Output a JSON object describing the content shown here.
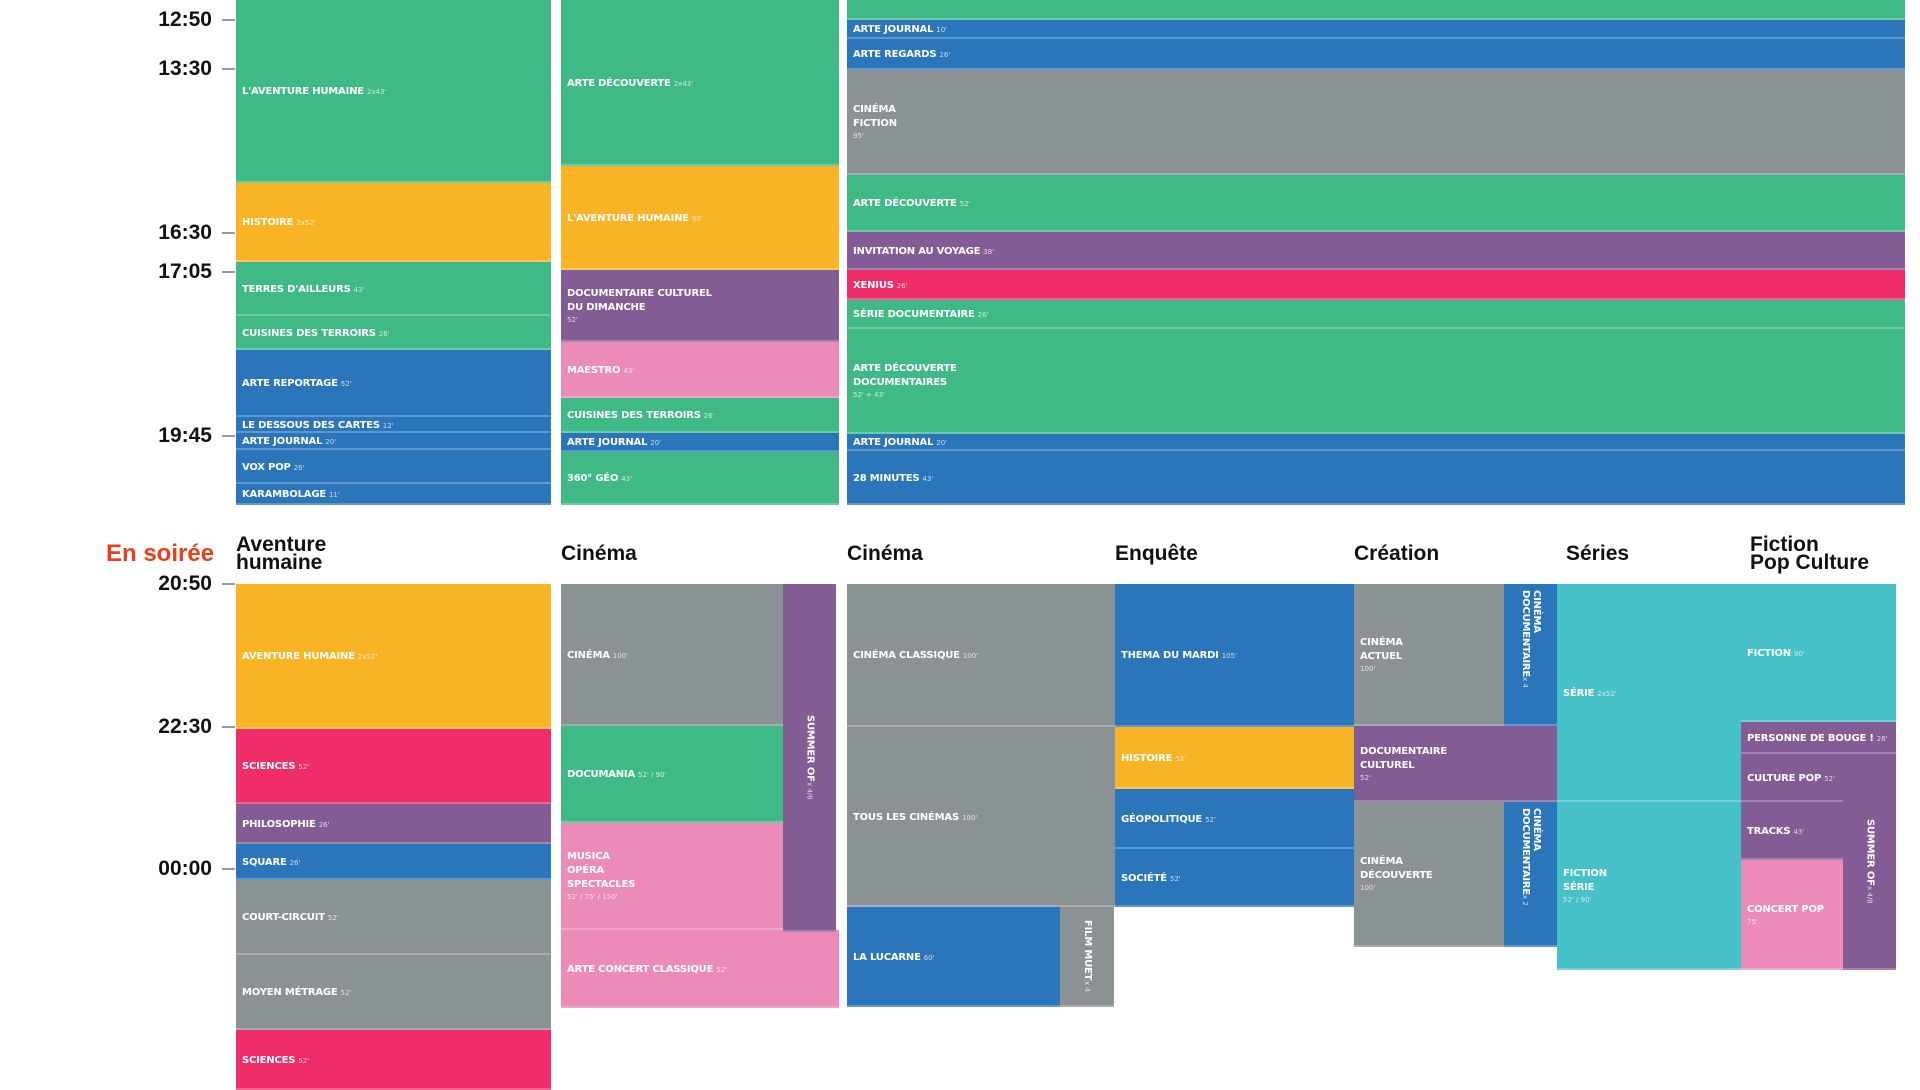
{
  "colors": {
    "green": "#3fba87",
    "orange": "#f8b424",
    "blue": "#2b75bb",
    "gray": "#8a9294",
    "purple": "#835b95",
    "red": "#ef2d68",
    "pink": "#ec8bb8",
    "teal": "#46c1c7",
    "accent": "#e8401c"
  },
  "day": {
    "times": [
      "12:50",
      "13:30",
      "16:30",
      "17:05",
      "19:45"
    ],
    "programs": [
      {
        "title": "L'AVENTURE HUMAINE",
        "dur": "2x43'",
        "color": "green"
      },
      {
        "title": "HISTOIRE",
        "dur": "2x52'",
        "color": "orange"
      },
      {
        "title": "TERRES D'AILLEURS",
        "dur": "43'",
        "color": "green"
      },
      {
        "title": "CUISINES DES TERROIRS",
        "dur": "26'",
        "color": "green"
      },
      {
        "title": "ARTE REPORTAGE",
        "dur": "52'",
        "color": "blue"
      },
      {
        "title": "LE DESSOUS DES CARTES",
        "dur": "12'",
        "color": "blue"
      },
      {
        "title": "ARTE JOURNAL",
        "dur": "20'",
        "color": "blue"
      },
      {
        "title": "VOX POP",
        "dur": "26'",
        "color": "blue"
      },
      {
        "title": "KARAMBOLAGE",
        "dur": "11'",
        "color": "blue"
      },
      {
        "title": "ARTE DÉCOUVERTE",
        "dur": "2x43'",
        "color": "green"
      },
      {
        "title": "L'AVENTURE HUMAINE",
        "dur": "90'",
        "color": "orange"
      },
      {
        "title": "DOCUMENTAIRE CULTUREL\nDU DIMANCHE",
        "dur": "52'",
        "color": "purple"
      },
      {
        "title": "MAESTRO",
        "dur": "43'",
        "color": "pink"
      },
      {
        "title": "CUISINES DES TERROIRS",
        "dur": "26'",
        "color": "green"
      },
      {
        "title": "ARTE JOURNAL",
        "dur": "20'",
        "color": "blue"
      },
      {
        "title": "360° GÉO",
        "dur": "43'",
        "color": "green"
      },
      {
        "title": "",
        "dur": "",
        "color": "green"
      },
      {
        "title": "ARTE JOURNAL",
        "dur": "10'",
        "color": "blue"
      },
      {
        "title": "ARTE REGARDS",
        "dur": "26'",
        "color": "blue"
      },
      {
        "title": "CINÉMA\nFICTION",
        "dur": "95'",
        "color": "gray"
      },
      {
        "title": "ARTE DÉCOUVERTE",
        "dur": "52'",
        "color": "green"
      },
      {
        "title": "INVITATION AU VOYAGE",
        "dur": "38'",
        "color": "purple"
      },
      {
        "title": "XENIUS",
        "dur": "26'",
        "color": "red"
      },
      {
        "title": "SÉRIE DOCUMENTAIRE",
        "dur": "26'",
        "color": "green"
      },
      {
        "title": "ARTE DÉCOUVERTE\nDOCUMENTAIRES",
        "dur": "52' + 43'",
        "color": "green"
      },
      {
        "title": "ARTE JOURNAL",
        "dur": "20'",
        "color": "blue"
      },
      {
        "title": "28 MINUTES",
        "dur": "43'",
        "color": "blue"
      }
    ]
  },
  "evening": {
    "label": "En soirée",
    "times": [
      "20:50",
      "22:30",
      "00:00"
    ],
    "headers": [
      "Aventure\nhumaine",
      "Cinéma",
      "Cinéma",
      "Enquête",
      "Création",
      "Séries",
      "Fiction\nPop Culture"
    ],
    "programs": [
      {
        "title": "AVENTURE HUMAINE",
        "dur": "2x52'",
        "color": "orange"
      },
      {
        "title": "SCIENCES",
        "dur": "52'",
        "color": "red"
      },
      {
        "title": "PHILOSOPHIE",
        "dur": "26'",
        "color": "purple"
      },
      {
        "title": "SQUARE",
        "dur": "26'",
        "color": "blue"
      },
      {
        "title": "COURT-CIRCUIT",
        "dur": "52'",
        "color": "gray"
      },
      {
        "title": "MOYEN MÉTRAGE",
        "dur": "52'",
        "color": "gray"
      },
      {
        "title": "SCIENCES",
        "dur": "52'",
        "color": "red"
      },
      {
        "title": "CINÉMA",
        "dur": "100'",
        "color": "gray"
      },
      {
        "title": "DOCUMANIA",
        "dur": "52' / 90'",
        "color": "green"
      },
      {
        "title": "MUSICA\nOPÉRA\nSPECTACLES",
        "dur": "52' / 75' / 150'",
        "color": "pink"
      },
      {
        "title": "ARTE CONCERT CLASSIQUE",
        "dur": "52'",
        "color": "pink"
      },
      {
        "title": "SUMMER OF",
        "dur": "x 4/8",
        "color": "purple"
      },
      {
        "title": "CINÉMA CLASSIQUE",
        "dur": "100'",
        "color": "gray"
      },
      {
        "title": "TOUS LES CINÉMAS",
        "dur": "100'",
        "color": "gray"
      },
      {
        "title": "LA LUCARNE",
        "dur": "60'",
        "color": "blue"
      },
      {
        "title": "FILM MUET",
        "dur": "x 4",
        "color": "gray"
      },
      {
        "title": "THEMA DU MARDI",
        "dur": "105'",
        "color": "blue"
      },
      {
        "title": "HISTOIRE",
        "dur": "52'",
        "color": "orange"
      },
      {
        "title": "GÉOPOLITIQUE",
        "dur": "52'",
        "color": "blue"
      },
      {
        "title": "SOCIÉTÉ",
        "dur": "52'",
        "color": "blue"
      },
      {
        "title": "CINÉMA\nACTUEL",
        "dur": "100'",
        "color": "gray"
      },
      {
        "title": "CINÉMA DOCUMENTAIRE",
        "dur": "x 4",
        "color": "blue"
      },
      {
        "title": "DOCUMENTAIRE\nCULTUREL",
        "dur": "52'",
        "color": "purple"
      },
      {
        "title": "CINÉMA\nDÉCOUVERTE",
        "dur": "100'",
        "color": "gray"
      },
      {
        "title": "CINÉMA DOCUMENTAIRE",
        "dur": "x 2",
        "color": "blue"
      },
      {
        "title": "SÉRIE",
        "dur": "2x52'",
        "color": "teal"
      },
      {
        "title": "FICTION\nSÉRIE",
        "dur": "52' / 90'",
        "color": "teal"
      },
      {
        "title": "FICTION",
        "dur": "90'",
        "color": "teal"
      },
      {
        "title": "PERSONNE DE BOUGE !",
        "dur": "26'",
        "color": "purple"
      },
      {
        "title": "CULTURE POP",
        "dur": "52'",
        "color": "purple"
      },
      {
        "title": "TRACKS",
        "dur": "43'",
        "color": "purple"
      },
      {
        "title": "CONCERT POP",
        "dur": "75'",
        "color": "pink"
      },
      {
        "title": "SUMMER OF",
        "dur": "x 4/8",
        "color": "purple"
      }
    ]
  }
}
